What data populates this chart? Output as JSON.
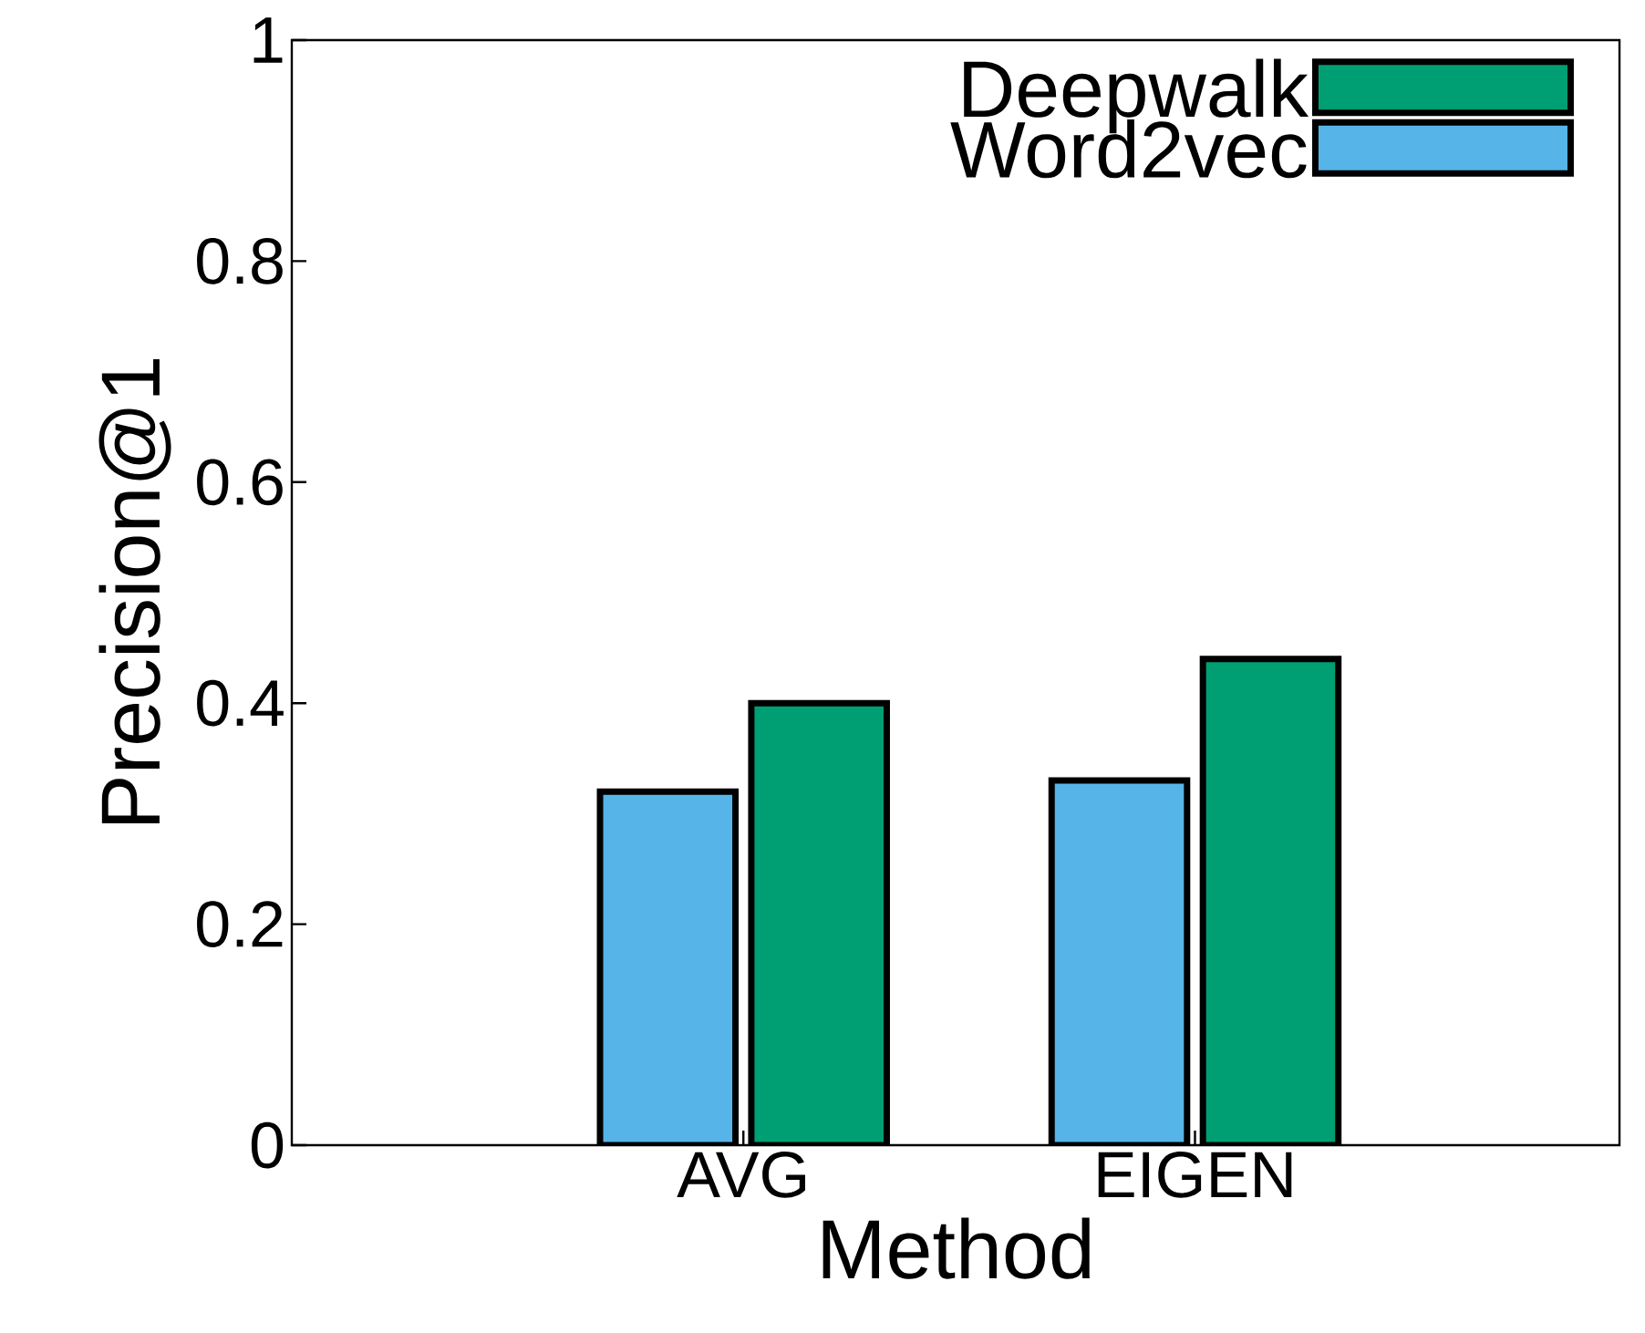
{
  "chart_data": {
    "type": "bar",
    "xlabel": "Method",
    "ylabel": "Precision@1",
    "categories": [
      "AVG",
      "EIGEN"
    ],
    "series": [
      {
        "name": "Word2vec",
        "color": "#56b4e9",
        "values": [
          0.32,
          0.33
        ]
      },
      {
        "name": "Deepwalk",
        "color": "#009e73",
        "values": [
          0.4,
          0.44
        ]
      }
    ],
    "ylim": [
      0,
      1
    ],
    "yticks": [
      0,
      0.2,
      0.4,
      0.6,
      0.8,
      1
    ],
    "legend": "top right"
  }
}
